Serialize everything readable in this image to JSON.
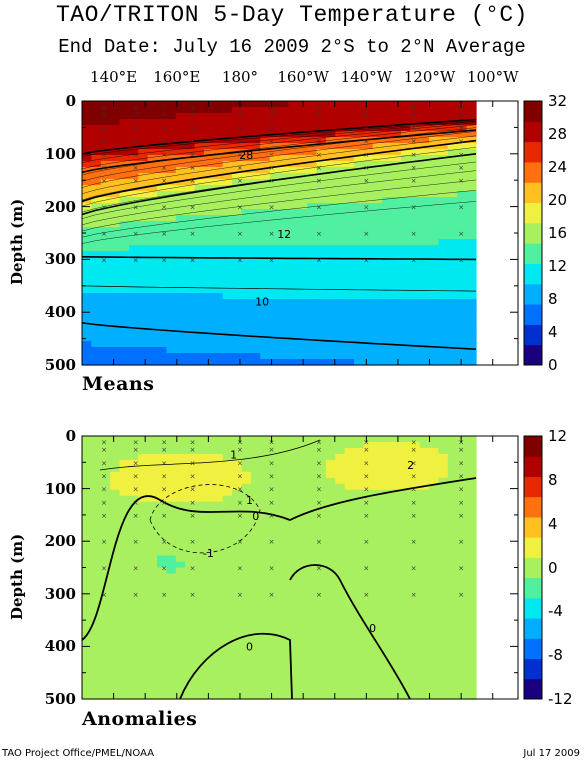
{
  "title": "TAO/TRITON 5-Day Temperature (°C)",
  "subtitle": "End Date: July 16 2009  2°S to 2°N Average",
  "longitude_labels": [
    "140°E",
    "160°E",
    "180°",
    "160°W",
    "140°W",
    "120°W",
    "100°W"
  ],
  "depth_axis_label": "Depth (m)",
  "depth_ticks": [
    "0",
    "100",
    "200",
    "300",
    "400",
    "500"
  ],
  "footer_left": "TAO Project Office/PMEL/NOAA",
  "footer_right": "Jul 17 2009",
  "chart_data": [
    {
      "type": "heatmap",
      "panel_label": "Means",
      "ylabel": "Depth (m)",
      "ylim": [
        500,
        0
      ],
      "x_tick_labels": [
        "140°E",
        "160°E",
        "180°",
        "160°W",
        "140°W",
        "120°W",
        "100°W"
      ],
      "colorbar": {
        "min": 0,
        "max": 32,
        "ticks": [
          "32",
          "28",
          "24",
          "20",
          "16",
          "12",
          "8",
          "4",
          "0"
        ]
      },
      "contour_labels": [
        {
          "text": "28",
          "lon": 182,
          "depth": 102
        },
        {
          "text": "12",
          "lon": 194,
          "depth": 252
        },
        {
          "text": "10",
          "lon": 187,
          "depth": 380
        }
      ],
      "isotherms": [
        {
          "value": 28,
          "depth_west": 100,
          "depth_east": 35
        },
        {
          "value": 24,
          "depth_west": 135,
          "depth_east": 55
        },
        {
          "value": 20,
          "depth_west": 190,
          "depth_east": 75
        },
        {
          "value": 16,
          "depth_west": 215,
          "depth_east": 100
        },
        {
          "value": 12,
          "depth_west": 295,
          "depth_east": 300
        },
        {
          "value": 10,
          "depth_west": 350,
          "depth_east": 360
        },
        {
          "value": 8,
          "depth_west": 420,
          "depth_east": 470
        }
      ]
    },
    {
      "type": "heatmap",
      "panel_label": "Anomalies",
      "ylabel": "Depth (m)",
      "ylim": [
        500,
        0
      ],
      "x_tick_labels": [
        "140°E",
        "160°E",
        "180°",
        "160°W",
        "140°W",
        "120°W",
        "100°W"
      ],
      "colorbar": {
        "min": -12,
        "max": 12,
        "ticks": [
          "12",
          "8",
          "4",
          "0",
          "-4",
          "-8",
          "-12"
        ]
      },
      "contour_labels": [
        {
          "text": "1",
          "lon": 178,
          "depth": 35
        },
        {
          "text": "2",
          "lon": 234,
          "depth": 55
        },
        {
          "text": "1",
          "lon": 183,
          "depth": 122
        },
        {
          "text": "0",
          "lon": 185,
          "depth": 152
        },
        {
          "text": "-1",
          "lon": 170,
          "depth": 222
        },
        {
          "text": "0",
          "lon": 222,
          "depth": 365
        },
        {
          "text": "0",
          "lon": 183,
          "depth": 400
        }
      ]
    }
  ],
  "colors": {
    "colormap": [
      "#1a0080",
      "#0030d0",
      "#0070ff",
      "#00b0ff",
      "#00e8f0",
      "#50f0a0",
      "#a8f060",
      "#f0f040",
      "#ffc020",
      "#ff7010",
      "#e82800",
      "#b00000",
      "#800000"
    ]
  }
}
